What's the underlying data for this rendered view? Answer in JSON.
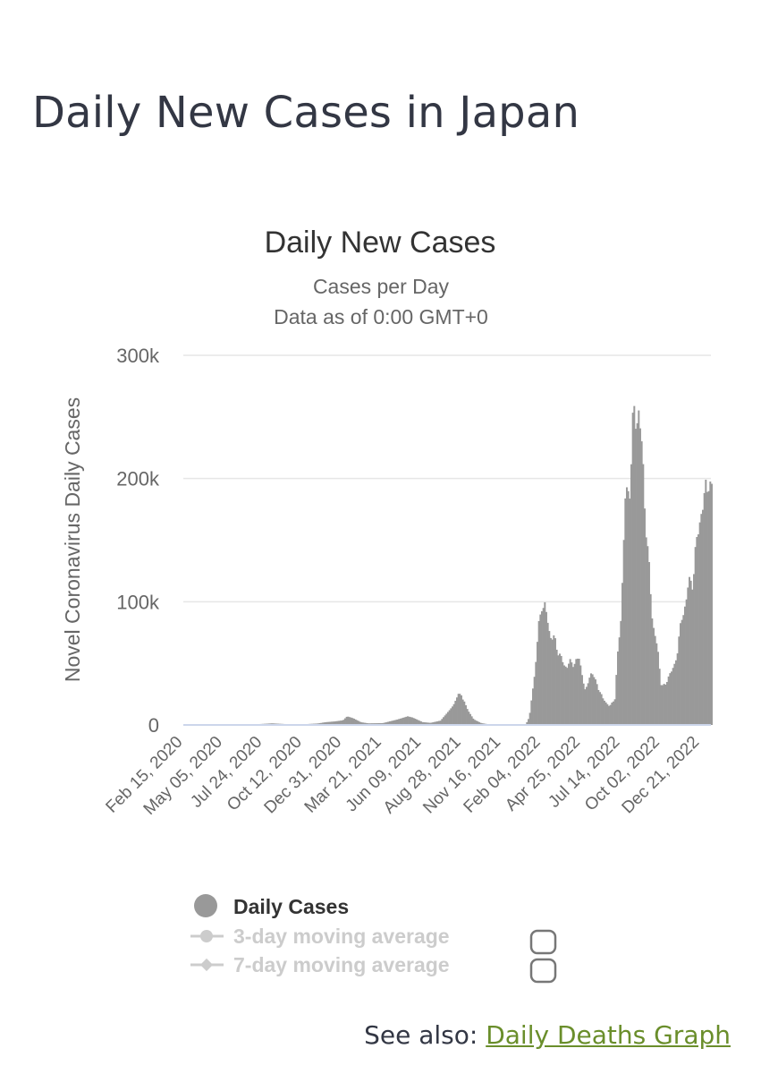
{
  "page": {
    "title": "Daily New Cases in Japan",
    "see_also_prefix": "See also: ",
    "see_also_link": "Daily Deaths Graph"
  },
  "chart_data": {
    "type": "bar",
    "title": "Daily New Cases",
    "subtitle_lines": [
      "Cases per Day",
      "Data as of 0:00 GMT+0"
    ],
    "ylabel": "Novel Coronavirus Daily Cases",
    "xlabel": "",
    "ylim": [
      0,
      300000
    ],
    "yticks": [
      0,
      100000,
      200000,
      300000
    ],
    "ytick_labels": [
      "0",
      "100k",
      "200k",
      "300k"
    ],
    "x_range": [
      "2020-02-15",
      "2023-01-12"
    ],
    "xtick_labels": [
      "Feb 15, 2020",
      "May 05, 2020",
      "Jul 24, 2020",
      "Oct 12, 2020",
      "Dec 31, 2020",
      "Mar 21, 2021",
      "Jun 09, 2021",
      "Aug 28, 2021",
      "Nov 16, 2021",
      "Feb 04, 2022",
      "Apr 25, 2022",
      "Jul 14, 2022",
      "Oct 02, 2022",
      "Dec 21, 2022"
    ],
    "grid": true,
    "bar_color": "#999999",
    "legend": {
      "placement": "bottom",
      "items": [
        {
          "label": "Daily Cases",
          "active": true
        },
        {
          "label": "3-day moving average",
          "active": false
        },
        {
          "label": "7-day moving average",
          "active": false
        }
      ]
    },
    "series": [
      {
        "name": "Daily Cases",
        "points": [
          [
            "2020-02-15",
            10
          ],
          [
            "2020-03-20",
            60
          ],
          [
            "2020-04-12",
            700
          ],
          [
            "2020-05-05",
            150
          ],
          [
            "2020-06-15",
            70
          ],
          [
            "2020-07-24",
            900
          ],
          [
            "2020-08-10",
            1300
          ],
          [
            "2020-09-15",
            500
          ],
          [
            "2020-10-12",
            550
          ],
          [
            "2020-11-10",
            1200
          ],
          [
            "2020-11-25",
            2200
          ],
          [
            "2020-12-15",
            2900
          ],
          [
            "2020-12-31",
            3800
          ],
          [
            "2021-01-08",
            7000
          ],
          [
            "2021-01-20",
            5500
          ],
          [
            "2021-02-05",
            2200
          ],
          [
            "2021-02-20",
            1300
          ],
          [
            "2021-03-21",
            1500
          ],
          [
            "2021-04-20",
            4500
          ],
          [
            "2021-05-10",
            7000
          ],
          [
            "2021-05-20",
            6000
          ],
          [
            "2021-06-09",
            2300
          ],
          [
            "2021-06-25",
            1700
          ],
          [
            "2021-07-15",
            3500
          ],
          [
            "2021-07-31",
            11000
          ],
          [
            "2021-08-10",
            16000
          ],
          [
            "2021-08-20",
            25000
          ],
          [
            "2021-08-28",
            23000
          ],
          [
            "2021-09-08",
            12000
          ],
          [
            "2021-09-20",
            4500
          ],
          [
            "2021-10-05",
            1500
          ],
          [
            "2021-10-20",
            500
          ],
          [
            "2021-11-16",
            150
          ],
          [
            "2021-12-20",
            200
          ],
          [
            "2022-01-03",
            600
          ],
          [
            "2022-01-10",
            6500
          ],
          [
            "2022-01-20",
            40000
          ],
          [
            "2022-01-28",
            75000
          ],
          [
            "2022-02-04",
            100000
          ],
          [
            "2022-02-10",
            95000
          ],
          [
            "2022-02-20",
            75000
          ],
          [
            "2022-03-05",
            65000
          ],
          [
            "2022-03-20",
            48000
          ],
          [
            "2022-04-05",
            50000
          ],
          [
            "2022-04-20",
            53000
          ],
          [
            "2022-04-25",
            45000
          ],
          [
            "2022-05-03",
            25000
          ],
          [
            "2022-05-12",
            43000
          ],
          [
            "2022-05-25",
            35000
          ],
          [
            "2022-06-05",
            22000
          ],
          [
            "2022-06-20",
            15000
          ],
          [
            "2022-07-01",
            22000
          ],
          [
            "2022-07-14",
            95000
          ],
          [
            "2022-07-22",
            180000
          ],
          [
            "2022-08-01",
            200000
          ],
          [
            "2022-08-08",
            250000
          ],
          [
            "2022-08-18",
            255000
          ],
          [
            "2022-08-28",
            200000
          ],
          [
            "2022-09-05",
            140000
          ],
          [
            "2022-09-15",
            85000
          ],
          [
            "2022-09-25",
            60000
          ],
          [
            "2022-10-02",
            35000
          ],
          [
            "2022-10-10",
            30000
          ],
          [
            "2022-10-18",
            42000
          ],
          [
            "2022-10-28",
            45000
          ],
          [
            "2022-11-05",
            65000
          ],
          [
            "2022-11-15",
            90000
          ],
          [
            "2022-11-25",
            110000
          ],
          [
            "2022-12-05",
            120000
          ],
          [
            "2022-12-14",
            150000
          ],
          [
            "2022-12-21",
            175000
          ],
          [
            "2022-12-28",
            180000
          ],
          [
            "2023-01-06",
            205000
          ],
          [
            "2023-01-12",
            185000
          ]
        ]
      }
    ]
  }
}
